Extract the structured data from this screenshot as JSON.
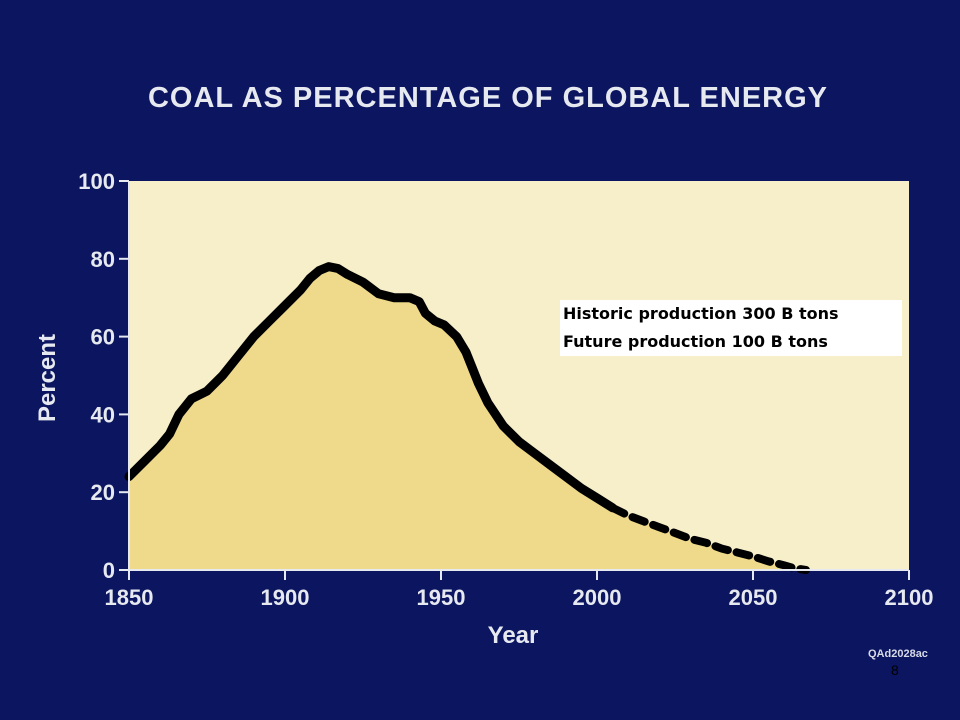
{
  "slide": {
    "code": "QAd2028ac",
    "page_number": "8"
  },
  "colors": {
    "background": "#0b1560",
    "plot_background": "#f6efca",
    "area_fill": "#efd98b",
    "line": "#000000",
    "text": "#e6e9ef"
  },
  "chart_data": {
    "type": "area",
    "title": "COAL AS PERCENTAGE OF GLOBAL ENERGY",
    "xlabel": "Year",
    "ylabel": "Percent",
    "xlim": [
      1850,
      2100
    ],
    "ylim": [
      0,
      100
    ],
    "x_ticks": [
      1850,
      1900,
      1950,
      2000,
      2050,
      2100
    ],
    "y_ticks": [
      0,
      20,
      40,
      60,
      80,
      100
    ],
    "grid": false,
    "annotations": [
      "Historic production 300 B tons",
      "Future production 100 B tons"
    ],
    "series": [
      {
        "style": "solid",
        "x": [
          1850,
          1855,
          1860,
          1863,
          1866,
          1870,
          1875,
          1880,
          1885,
          1890,
          1895,
          1900,
          1905,
          1908,
          1911,
          1914,
          1917,
          1920,
          1925,
          1930,
          1935,
          1940,
          1943,
          1945,
          1948,
          1951,
          1955,
          1958,
          1960,
          1962,
          1965,
          1970,
          1975,
          1980,
          1985,
          1990,
          1995,
          2000,
          2005
        ],
        "y": [
          24,
          28,
          32,
          35,
          40,
          44,
          46,
          50,
          55,
          60,
          64,
          68,
          72,
          75,
          77,
          78,
          77.5,
          76,
          74,
          71,
          70,
          70,
          69,
          66,
          64,
          63,
          60,
          56,
          52,
          48,
          43,
          37,
          33,
          30,
          27,
          24,
          21,
          18.5,
          16
        ]
      },
      {
        "style": "dashed",
        "x": [
          2005,
          2010,
          2015,
          2020,
          2025,
          2030,
          2035,
          2040,
          2045,
          2050,
          2055,
          2060,
          2063,
          2067
        ],
        "y": [
          16,
          14,
          12.5,
          11,
          9.5,
          8,
          7,
          5.5,
          4.5,
          3.5,
          2.2,
          1.2,
          0.5,
          0
        ]
      }
    ]
  }
}
